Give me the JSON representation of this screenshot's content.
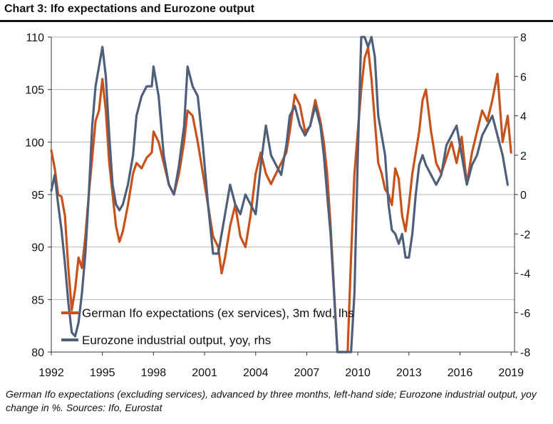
{
  "chart_data": {
    "type": "line",
    "title": "Chart 3: Ifo expectations and Eurozone output",
    "caption": "German Ifo expectations (excluding services), advanced by three months, left-hand side; Eurozone industrial output, yoy change in %. Sources: Ifo, Eurostat",
    "xlim": [
      1992,
      2019.2
    ],
    "x_ticks": [
      "1992",
      "1995",
      "1998",
      "2001",
      "2004",
      "2007",
      "2010",
      "2013",
      "2016",
      "2019"
    ],
    "x_tick_values": [
      1992,
      1995,
      1998,
      2001,
      2004,
      2007,
      2010,
      2013,
      2016,
      2019
    ],
    "ylim_left": [
      80,
      110
    ],
    "y_ticks_left": [
      "80",
      "85",
      "90",
      "95",
      "100",
      "105",
      "110"
    ],
    "y_tick_values_left": [
      80,
      85,
      90,
      95,
      100,
      105,
      110
    ],
    "ylim_right": [
      -8,
      8
    ],
    "y_ticks_right": [
      "-8",
      "-6",
      "-4",
      "-2",
      "0",
      "2",
      "4",
      "6",
      "8"
    ],
    "y_tick_values_right": [
      -8,
      -6,
      -4,
      -2,
      0,
      2,
      4,
      6,
      8
    ],
    "grid": "horizontal",
    "legend_position": "bottom-left",
    "series": [
      {
        "name": "German Ifo expectations (ex services), 3m fwd, lhs",
        "axis": "left",
        "color": "#c8511c",
        "x": [
          1992.0,
          1992.2,
          1992.4,
          1992.6,
          1992.8,
          1993.0,
          1993.2,
          1993.4,
          1993.6,
          1993.8,
          1994.0,
          1994.2,
          1994.4,
          1994.6,
          1994.8,
          1995.0,
          1995.2,
          1995.4,
          1995.6,
          1995.8,
          1996.0,
          1996.2,
          1996.5,
          1996.8,
          1997.0,
          1997.3,
          1997.6,
          1997.9,
          1998.0,
          1998.3,
          1998.6,
          1998.9,
          1999.2,
          1999.5,
          1999.8,
          2000.0,
          2000.3,
          2000.6,
          2000.9,
          2001.2,
          2001.5,
          2001.8,
          2002.0,
          2002.2,
          2002.5,
          2002.8,
          2003.1,
          2003.4,
          2003.7,
          2004.0,
          2004.3,
          2004.6,
          2004.9,
          2005.2,
          2005.5,
          2005.8,
          2006.0,
          2006.3,
          2006.6,
          2006.9,
          2007.2,
          2007.5,
          2007.8,
          2008.0,
          2008.2,
          2008.4,
          2008.6,
          2008.8,
          2009.0,
          2009.2,
          2009.4,
          2009.6,
          2009.8,
          2010.0,
          2010.2,
          2010.4,
          2010.6,
          2010.8,
          2011.0,
          2011.2,
          2011.4,
          2011.6,
          2011.8,
          2012.0,
          2012.2,
          2012.4,
          2012.6,
          2012.8,
          2013.0,
          2013.2,
          2013.4,
          2013.6,
          2013.8,
          2014.0,
          2014.3,
          2014.6,
          2014.9,
          2015.2,
          2015.5,
          2015.8,
          2016.1,
          2016.4,
          2016.7,
          2017.0,
          2017.3,
          2017.6,
          2017.9,
          2018.2,
          2018.5,
          2018.8,
          2019.0
        ],
        "values": [
          99.2,
          97.5,
          95.0,
          94.8,
          93.0,
          88.0,
          84.0,
          86.0,
          89.0,
          88.0,
          91.0,
          95.0,
          98.5,
          102.0,
          103.0,
          106.0,
          103.0,
          98.0,
          95.0,
          92.0,
          90.5,
          91.5,
          94.0,
          97.0,
          98.0,
          97.5,
          98.5,
          99.0,
          101.0,
          100.0,
          98.0,
          96.0,
          95.0,
          97.0,
          100.0,
          103.0,
          102.5,
          100.0,
          97.0,
          94.0,
          91.0,
          90.0,
          87.5,
          89.0,
          92.0,
          94.0,
          91.0,
          90.0,
          93.0,
          97.0,
          99.0,
          97.0,
          96.0,
          97.0,
          98.0,
          99.0,
          101.0,
          104.5,
          103.5,
          101.0,
          101.5,
          104.0,
          102.0,
          100.0,
          97.0,
          92.0,
          86.0,
          80.0,
          80.0,
          80.0,
          80.0,
          89.0,
          97.0,
          101.0,
          105.0,
          108.0,
          109.0,
          106.0,
          102.0,
          98.0,
          97.0,
          95.5,
          95.0,
          94.0,
          97.5,
          96.5,
          93.0,
          91.5,
          94.0,
          97.0,
          99.0,
          101.0,
          104.0,
          105.0,
          101.0,
          98.0,
          97.0,
          98.5,
          100.0,
          98.0,
          100.5,
          96.0,
          99.0,
          101.0,
          103.0,
          102.0,
          104.0,
          106.5,
          100.0,
          102.5,
          99.0
        ]
      },
      {
        "name": "Eurozone industrial output, yoy, rhs",
        "axis": "right",
        "color": "#4f5f79",
        "x": [
          1992.0,
          1992.2,
          1992.4,
          1992.6,
          1992.8,
          1993.0,
          1993.2,
          1993.4,
          1993.6,
          1993.8,
          1994.0,
          1994.2,
          1994.4,
          1994.6,
          1994.8,
          1995.0,
          1995.2,
          1995.4,
          1995.6,
          1995.8,
          1996.0,
          1996.2,
          1996.5,
          1996.8,
          1997.0,
          1997.3,
          1997.6,
          1997.9,
          1998.0,
          1998.3,
          1998.6,
          1998.9,
          1999.2,
          1999.5,
          1999.8,
          2000.0,
          2000.3,
          2000.6,
          2000.9,
          2001.2,
          2001.5,
          2001.8,
          2002.0,
          2002.2,
          2002.5,
          2002.8,
          2003.1,
          2003.4,
          2003.7,
          2004.0,
          2004.3,
          2004.6,
          2004.9,
          2005.2,
          2005.5,
          2005.8,
          2006.0,
          2006.3,
          2006.6,
          2006.9,
          2007.2,
          2007.5,
          2007.8,
          2008.0,
          2008.2,
          2008.4,
          2008.6,
          2008.8,
          2009.0,
          2009.2,
          2009.4,
          2009.6,
          2009.8,
          2010.0,
          2010.2,
          2010.4,
          2010.6,
          2010.8,
          2011.0,
          2011.2,
          2011.4,
          2011.6,
          2011.8,
          2012.0,
          2012.2,
          2012.4,
          2012.6,
          2012.8,
          2013.0,
          2013.2,
          2013.4,
          2013.6,
          2013.8,
          2014.0,
          2014.3,
          2014.6,
          2014.9,
          2015.2,
          2015.5,
          2015.8,
          2016.1,
          2016.4,
          2016.7,
          2017.0,
          2017.3,
          2017.6,
          2017.9,
          2018.2,
          2018.5,
          2018.8
        ],
        "values": [
          0.2,
          1.0,
          -0.5,
          -1.8,
          -3.5,
          -5.5,
          -7.0,
          -7.2,
          -6.5,
          -5.0,
          -3.0,
          0.0,
          3.5,
          5.5,
          6.5,
          7.5,
          6.0,
          3.0,
          0.5,
          -0.5,
          -0.8,
          -0.5,
          0.5,
          2.0,
          4.0,
          5.0,
          5.5,
          5.5,
          6.5,
          5.0,
          2.0,
          0.5,
          0.0,
          1.5,
          3.5,
          6.5,
          5.5,
          5.0,
          2.5,
          -0.5,
          -3.0,
          -3.0,
          -2.0,
          -1.0,
          0.5,
          -0.5,
          -1.0,
          0.0,
          -0.5,
          -1.0,
          1.5,
          3.5,
          2.0,
          1.5,
          1.0,
          2.5,
          4.0,
          4.5,
          3.5,
          3.0,
          3.5,
          4.5,
          3.5,
          2.0,
          0.0,
          -2.0,
          -5.0,
          -8.0,
          -8.0,
          -8.0,
          -8.0,
          -8.0,
          -5.0,
          2.0,
          8.0,
          8.0,
          7.5,
          8.0,
          7.0,
          4.0,
          3.0,
          2.0,
          -0.5,
          -1.8,
          -2.0,
          -2.5,
          -2.0,
          -3.2,
          -3.2,
          -2.0,
          0.0,
          1.5,
          2.0,
          1.5,
          1.0,
          0.5,
          1.0,
          2.5,
          3.0,
          3.5,
          2.0,
          0.5,
          1.5,
          2.0,
          3.0,
          3.5,
          4.0,
          3.0,
          2.0,
          0.5
        ]
      }
    ]
  }
}
